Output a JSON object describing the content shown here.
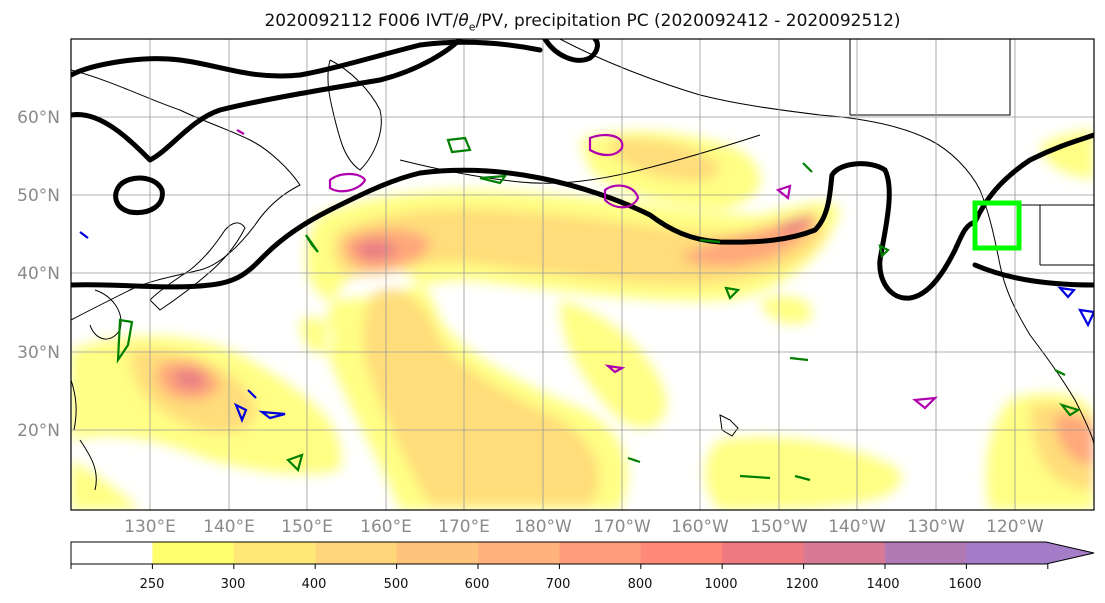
{
  "map": {
    "title_prefix": "2020092112 F006 IVT/",
    "title_theta": "θ",
    "title_sub": "e",
    "title_suffix": "/PV, precipitation PC (2020092412 - 2020092512)",
    "lat_labels": [
      "60°N",
      "50°N",
      "40°N",
      "30°N",
      "20°N"
    ],
    "lon_labels": [
      "130°E",
      "140°E",
      "150°E",
      "160°E",
      "170°E",
      "180°W",
      "170°W",
      "160°W",
      "150°W",
      "140°W",
      "130°W",
      "120°W"
    ],
    "colors": {
      "pv_contour": "#000000",
      "green_contour": "#008000",
      "magenta_contour": "#b000b0",
      "blue_contour": "#0000e0",
      "target_box": "#00ff00",
      "coast": "#000000"
    }
  },
  "colorbar": {
    "ticks": [
      "250",
      "300",
      "400",
      "500",
      "600",
      "700",
      "800",
      "1000",
      "1200",
      "1400",
      "1600"
    ],
    "colors": [
      "#ffffff",
      "#ffff6e",
      "#ffe876",
      "#ffd77a",
      "#ffc47c",
      "#ffb27c",
      "#ff9b7a",
      "#ff8878",
      "#f07a82",
      "#d87a96",
      "#b27ab4",
      "#a47cc8"
    ]
  }
}
